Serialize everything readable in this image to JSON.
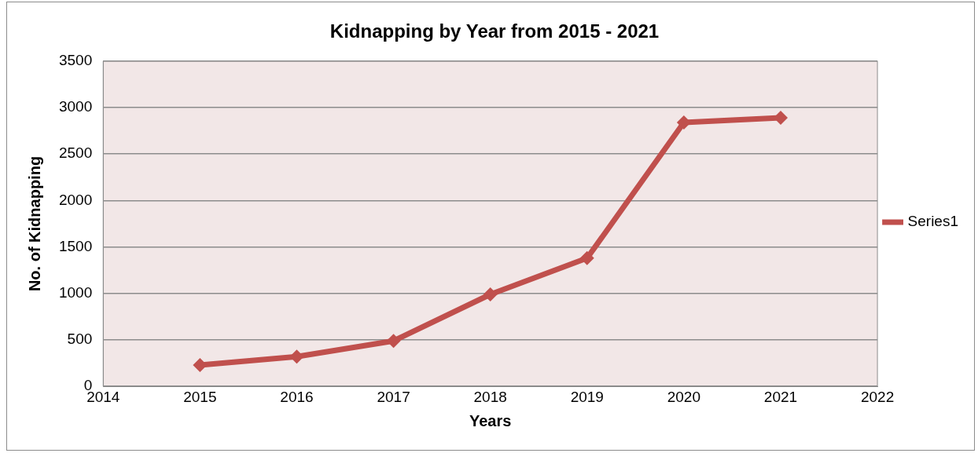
{
  "chart_data": {
    "type": "line",
    "title": "Kidnapping by Year from 2015 - 2021",
    "xlabel": "Years",
    "ylabel": "No. of Kidnapping",
    "x": [
      2015,
      2016,
      2017,
      2018,
      2019,
      2020,
      2021
    ],
    "series": [
      {
        "name": "Series1",
        "color": "#c0504d",
        "values": [
          230,
          320,
          490,
          990,
          1380,
          2840,
          2890
        ]
      }
    ],
    "xlim": [
      2014,
      2022
    ],
    "xticks": [
      2014,
      2015,
      2016,
      2017,
      2018,
      2019,
      2020,
      2021,
      2022
    ],
    "ylim": [
      0,
      3500
    ],
    "yticks": [
      0,
      500,
      1000,
      1500,
      2000,
      2500,
      3000,
      3500
    ],
    "grid": "y",
    "legend": "right",
    "marker": "diamond",
    "line_style": "solid"
  }
}
